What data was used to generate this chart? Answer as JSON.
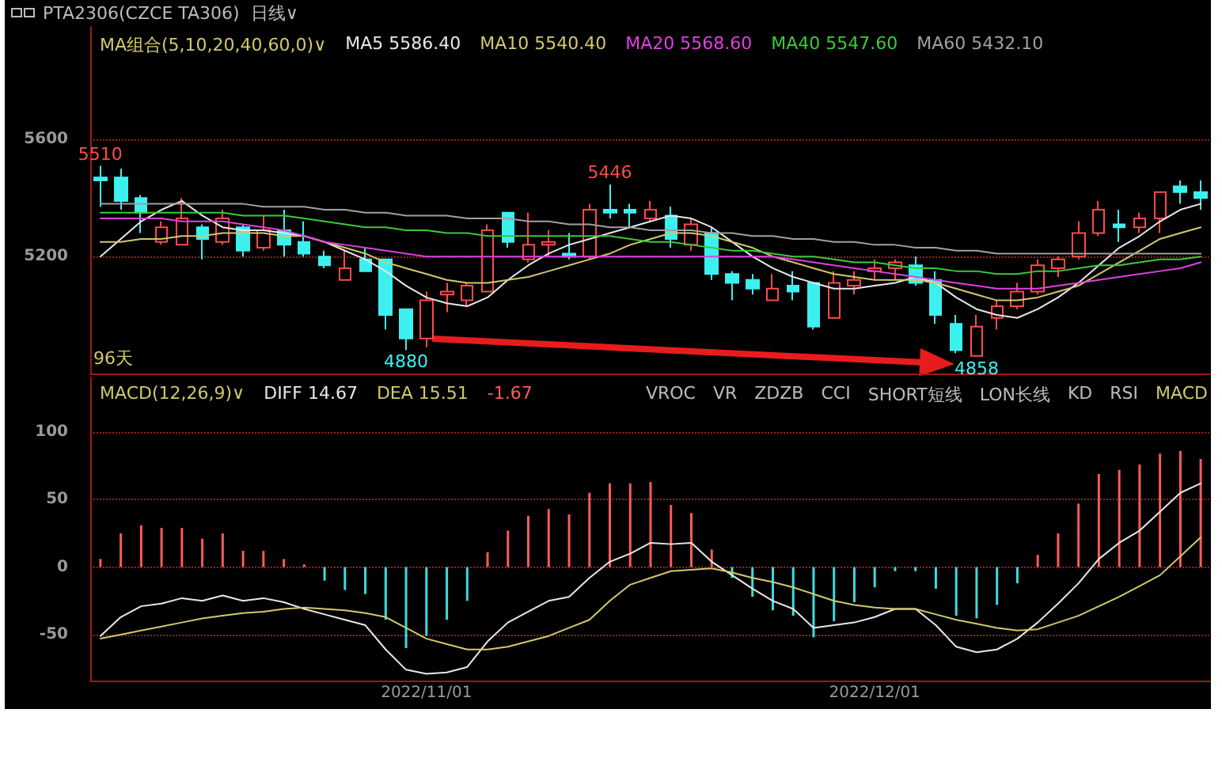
{
  "chart_data": [
    {
      "type": "candlestick",
      "title": "PTA2306(CZCE TA306)  日线∨",
      "legend_title": "MA组合(5,10,20,40,60,0)∨",
      "legend": "top left",
      "grid": "y",
      "tick_labels": "y",
      "marker": "none",
      "line_style": "solid",
      "categories": [
        null,
        null,
        null,
        null,
        null,
        null,
        null,
        null,
        null,
        null,
        null,
        null,
        null,
        null,
        null,
        null,
        "2022/11/01",
        null,
        null,
        null,
        null,
        null,
        null,
        null,
        null,
        null,
        null,
        null,
        null,
        null,
        null,
        null,
        null,
        null,
        null,
        null,
        null,
        null,
        "2022/12/01",
        null,
        null,
        null,
        null,
        null,
        null,
        null,
        null,
        null,
        null,
        null,
        null,
        null,
        null,
        null,
        null
      ],
      "ylim": [
        4800,
        5985
      ],
      "yticks": [
        5200,
        5600
      ],
      "ohlc": [
        [
          5470,
          5510,
          5370,
          5460
        ],
        [
          5470,
          5500,
          5360,
          5390
        ],
        [
          5400,
          5410,
          5280,
          5350
        ],
        [
          5250,
          5320,
          5240,
          5300
        ],
        [
          5240,
          5400,
          5240,
          5330
        ],
        [
          5300,
          5310,
          5190,
          5260
        ],
        [
          5250,
          5360,
          5240,
          5330
        ],
        [
          5300,
          5310,
          5200,
          5220
        ],
        [
          5230,
          5340,
          5220,
          5290
        ],
        [
          5290,
          5360,
          5200,
          5240
        ],
        [
          5250,
          5320,
          5200,
          5210
        ],
        [
          5200,
          5220,
          5160,
          5170
        ],
        [
          5120,
          5220,
          5120,
          5160
        ],
        [
          5190,
          5230,
          5150,
          5150
        ],
        [
          5190,
          5190,
          4950,
          5000
        ],
        [
          5020,
          5020,
          4880,
          4920
        ],
        [
          4920,
          5080,
          4890,
          5050
        ],
        [
          5070,
          5110,
          5010,
          5080
        ],
        [
          5050,
          5110,
          5030,
          5100
        ],
        [
          5080,
          5310,
          5080,
          5290
        ],
        [
          5350,
          5350,
          5230,
          5250
        ],
        [
          5190,
          5350,
          5180,
          5240
        ],
        [
          5240,
          5290,
          5200,
          5250
        ],
        [
          5210,
          5280,
          5190,
          5200
        ],
        [
          5200,
          5380,
          5190,
          5360
        ],
        [
          5360,
          5446,
          5330,
          5350
        ],
        [
          5360,
          5380,
          5300,
          5350
        ],
        [
          5330,
          5390,
          5320,
          5360
        ],
        [
          5340,
          5370,
          5230,
          5260
        ],
        [
          5240,
          5330,
          5220,
          5310
        ],
        [
          5280,
          5300,
          5120,
          5140
        ],
        [
          5140,
          5150,
          5050,
          5110
        ],
        [
          5120,
          5140,
          5070,
          5090
        ],
        [
          5050,
          5140,
          5050,
          5090
        ],
        [
          5100,
          5150,
          5050,
          5080
        ],
        [
          5110,
          5110,
          4950,
          4960
        ],
        [
          4990,
          5150,
          4990,
          5110
        ],
        [
          5100,
          5150,
          5070,
          5120
        ],
        [
          5150,
          5190,
          5120,
          5160
        ],
        [
          5160,
          5190,
          5120,
          5180
        ],
        [
          5170,
          5200,
          5100,
          5110
        ],
        [
          5120,
          5150,
          4970,
          5000
        ],
        [
          4970,
          5000,
          4870,
          4880
        ],
        [
          4860,
          5000,
          4858,
          4960
        ],
        [
          4990,
          5050,
          4950,
          5030
        ],
        [
          5030,
          5110,
          5020,
          5080
        ],
        [
          5080,
          5190,
          5070,
          5170
        ],
        [
          5160,
          5200,
          5130,
          5190
        ],
        [
          5200,
          5320,
          5190,
          5280
        ],
        [
          5280,
          5390,
          5270,
          5360
        ],
        [
          5310,
          5360,
          5250,
          5300
        ],
        [
          5300,
          5350,
          5280,
          5330
        ],
        [
          5330,
          5420,
          5280,
          5420
        ],
        [
          5440,
          5460,
          5380,
          5420
        ],
        [
          5420,
          5460,
          5360,
          5400
        ]
      ],
      "colors": [
        "#3cf0f0",
        "#3cf0f0",
        "#3cf0f0",
        "#ff4a4a",
        "#ff4a4a",
        "#3cf0f0",
        "#ff4a4a",
        "#3cf0f0",
        "#ff4a4a",
        "#3cf0f0",
        "#3cf0f0",
        "#3cf0f0",
        "#ff4a4a",
        "#3cf0f0",
        "#3cf0f0",
        "#3cf0f0",
        "#ff4a4a",
        "#ff4a4a",
        "#ff4a4a",
        "#ff4a4a",
        "#3cf0f0",
        "#ff4a4a",
        "#ff4a4a",
        "#3cf0f0",
        "#ff4a4a",
        "#3cf0f0",
        "#3cf0f0",
        "#ff4a4a",
        "#3cf0f0",
        "#ff4a4a",
        "#3cf0f0",
        "#3cf0f0",
        "#3cf0f0",
        "#ff4a4a",
        "#3cf0f0",
        "#3cf0f0",
        "#ff4a4a",
        "#ff4a4a",
        "#ff4a4a",
        "#ff4a4a",
        "#3cf0f0",
        "#3cf0f0",
        "#3cf0f0",
        "#ff4a4a",
        "#ff4a4a",
        "#ff4a4a",
        "#ff4a4a",
        "#ff4a4a",
        "#ff4a4a",
        "#ff4a4a",
        "#3cf0f0",
        "#ff4a4a",
        "#ff4a4a",
        "#3cf0f0",
        "#3cf0f0"
      ],
      "series": [
        {
          "name": "MA5 5586.40",
          "type": "line",
          "color": "#e8e8e8",
          "values": [
            5200,
            5260,
            5320,
            5360,
            5390,
            5340,
            5300,
            5290,
            5290,
            5280,
            5270,
            5250,
            5220,
            5190,
            5150,
            5100,
            5060,
            5040,
            5030,
            5060,
            5120,
            5170,
            5210,
            5240,
            5260,
            5280,
            5300,
            5320,
            5340,
            5330,
            5300,
            5250,
            5200,
            5160,
            5130,
            5110,
            5090,
            5090,
            5100,
            5110,
            5130,
            5110,
            5060,
            5020,
            5000,
            4990,
            5020,
            5060,
            5110,
            5170,
            5230,
            5270,
            5320,
            5360,
            5380
          ]
        },
        {
          "name": "MA10 5540.40",
          "type": "line",
          "color": "#d2c86e",
          "values": [
            5250,
            5250,
            5260,
            5260,
            5270,
            5270,
            5280,
            5280,
            5280,
            5270,
            5270,
            5250,
            5230,
            5210,
            5180,
            5160,
            5140,
            5120,
            5110,
            5110,
            5120,
            5130,
            5150,
            5170,
            5190,
            5210,
            5240,
            5260,
            5280,
            5280,
            5270,
            5250,
            5230,
            5200,
            5180,
            5160,
            5140,
            5130,
            5120,
            5120,
            5120,
            5110,
            5090,
            5070,
            5050,
            5050,
            5060,
            5080,
            5100,
            5140,
            5180,
            5220,
            5260,
            5280,
            5300
          ]
        },
        {
          "name": "MA20 5568.60",
          "type": "line",
          "color": "#e040e0",
          "values": [
            5330,
            5330,
            5330,
            5330,
            5320,
            5320,
            5320,
            5310,
            5300,
            5290,
            5270,
            5250,
            5240,
            5230,
            5220,
            5210,
            5200,
            5200,
            5200,
            5200,
            5200,
            5200,
            5200,
            5200,
            5200,
            5200,
            5200,
            5200,
            5200,
            5200,
            5200,
            5200,
            5200,
            5200,
            5190,
            5180,
            5170,
            5160,
            5150,
            5140,
            5130,
            5120,
            5110,
            5100,
            5090,
            5090,
            5090,
            5100,
            5110,
            5120,
            5130,
            5140,
            5150,
            5160,
            5180
          ]
        },
        {
          "name": "MA40 5547.60",
          "type": "line",
          "color": "#3cc83c",
          "values": [
            5350,
            5350,
            5350,
            5350,
            5350,
            5350,
            5350,
            5340,
            5340,
            5340,
            5330,
            5320,
            5310,
            5300,
            5300,
            5290,
            5290,
            5280,
            5280,
            5270,
            5270,
            5270,
            5270,
            5270,
            5270,
            5270,
            5260,
            5250,
            5250,
            5240,
            5230,
            5220,
            5220,
            5210,
            5200,
            5200,
            5190,
            5180,
            5180,
            5170,
            5160,
            5160,
            5150,
            5150,
            5140,
            5140,
            5150,
            5150,
            5160,
            5170,
            5170,
            5180,
            5190,
            5190,
            5200
          ]
        },
        {
          "name": "MA60 5432.10",
          "type": "line",
          "color": "#a0a0a0",
          "values": [
            5380,
            5380,
            5380,
            5380,
            5380,
            5380,
            5380,
            5380,
            5370,
            5370,
            5370,
            5360,
            5360,
            5350,
            5350,
            5340,
            5340,
            5340,
            5330,
            5330,
            5330,
            5320,
            5320,
            5310,
            5310,
            5300,
            5300,
            5290,
            5290,
            5290,
            5280,
            5280,
            5270,
            5270,
            5260,
            5260,
            5250,
            5250,
            5240,
            5240,
            5230,
            5230,
            5220,
            5220,
            5210,
            5210,
            5210,
            5210,
            5210,
            5210,
            5210,
            5210,
            5210,
            5210,
            5210
          ]
        }
      ],
      "annotations": [
        "96天",
        {
          "text": "5510",
          "y": 5510
        },
        {
          "text": "5446",
          "y": 5446
        },
        {
          "text": "4880",
          "y": 4880
        },
        {
          "text": "4858",
          "y": 4858
        }
      ]
    },
    {
      "type": "bar",
      "legend_title": "MACD(12,26,9)∨",
      "legend": "top left",
      "grid": "y",
      "marker": "none",
      "line_style": "solid",
      "categories": [
        null,
        null,
        null,
        null,
        null,
        null,
        null,
        null,
        null,
        null,
        null,
        null,
        null,
        null,
        null,
        null,
        "2022/11/01",
        null,
        null,
        null,
        null,
        null,
        null,
        null,
        null,
        null,
        null,
        null,
        null,
        null,
        null,
        null,
        null,
        null,
        null,
        null,
        null,
        null,
        "2022/12/01",
        null,
        null,
        null,
        null,
        null,
        null,
        null,
        null,
        null,
        null,
        null,
        null,
        null,
        null,
        null,
        null
      ],
      "ylim": [
        -84,
        141
      ],
      "yticks": [
        -50,
        0,
        50,
        100
      ],
      "series": [
        {
          "name": "DIFF 14.67",
          "type": "line",
          "color": "#e8e8e8",
          "values": [
            -51,
            -37,
            -29,
            -27,
            -23,
            -25,
            -21,
            -25,
            -23,
            -26,
            -31,
            -35,
            -39,
            -43,
            -61,
            -76,
            -79,
            -78,
            -74,
            -55,
            -41,
            -33,
            -25,
            -22,
            -8,
            4,
            10,
            18,
            17,
            18,
            4,
            -6,
            -16,
            -25,
            -31,
            -45,
            -43,
            -41,
            -37,
            -31,
            -31,
            -43,
            -59,
            -63,
            -61,
            -53,
            -41,
            -27,
            -12,
            6,
            18,
            27,
            41,
            55,
            62
          ]
        },
        {
          "name": "DEA 15.51",
          "type": "line",
          "color": "#d2c86e",
          "values": [
            -53,
            -50,
            -47,
            -44,
            -41,
            -38,
            -36,
            -34,
            -33,
            -31,
            -30,
            -31,
            -32,
            -34,
            -37,
            -45,
            -53,
            -57,
            -61,
            -61,
            -59,
            -55,
            -51,
            -45,
            -39,
            -25,
            -13,
            -8,
            -3,
            -2,
            -1,
            -4,
            -8,
            -11,
            -15,
            -20,
            -25,
            -28,
            -30,
            -31,
            -31,
            -35,
            -39,
            -42,
            -45,
            -47,
            -46,
            -41,
            -36,
            -29,
            -22,
            -14,
            -6,
            8,
            22
          ]
        },
        {
          "name": "-1.67",
          "type": "bar",
          "values": [
            6,
            25,
            31,
            29,
            29,
            21,
            25,
            12,
            12,
            6,
            2,
            -10,
            -17,
            -20,
            -39,
            -60,
            -51,
            -39,
            -25,
            11,
            27,
            38,
            43,
            39,
            55,
            62,
            62,
            63,
            46,
            40,
            13,
            -8,
            -22,
            -32,
            -36,
            -52,
            -40,
            -26,
            -15,
            -3,
            -3,
            -16,
            -36,
            -38,
            -28,
            -12,
            9,
            25,
            47,
            69,
            72,
            76,
            84,
            86,
            80
          ],
          "colors": [
            "#ff5a5a",
            "#ff5a5a",
            "#ff5a5a",
            "#ff5a5a",
            "#ff5a5a",
            "#ff5a5a",
            "#ff5a5a",
            "#ff5a5a",
            "#ff5a5a",
            "#ff5a5a",
            "#ff5a5a",
            "#3cdcdc",
            "#3cdcdc",
            "#3cdcdc",
            "#3cdcdc",
            "#3cdcdc",
            "#3cdcdc",
            "#3cdcdc",
            "#3cdcdc",
            "#ff5a5a",
            "#ff5a5a",
            "#ff5a5a",
            "#ff5a5a",
            "#ff5a5a",
            "#ff5a5a",
            "#ff5a5a",
            "#ff5a5a",
            "#ff5a5a",
            "#ff5a5a",
            "#ff5a5a",
            "#ff5a5a",
            "#3cdcdc",
            "#3cdcdc",
            "#3cdcdc",
            "#3cdcdc",
            "#3cdcdc",
            "#3cdcdc",
            "#3cdcdc",
            "#3cdcdc",
            "#3cdcdc",
            "#3cdcdc",
            "#3cdcdc",
            "#3cdcdc",
            "#3cdcdc",
            "#3cdcdc",
            "#3cdcdc",
            "#ff5a5a",
            "#ff5a5a",
            "#ff5a5a",
            "#ff5a5a",
            "#ff5a5a",
            "#ff5a5a",
            "#ff5a5a",
            "#ff5a5a",
            "#ff5a5a"
          ]
        }
      ],
      "annotations": [
        "VROC",
        "VR",
        "ZDZB",
        "CCI",
        "SHORT短线",
        "LON长线",
        "KD",
        "RSI",
        "MACD"
      ]
    }
  ]
}
